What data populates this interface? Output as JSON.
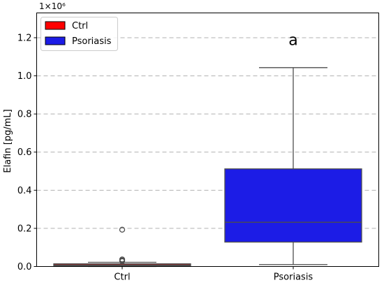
{
  "chart_data": {
    "type": "box",
    "categories": [
      "Ctrl",
      "Psoriasis"
    ],
    "ylabel": "Elafin [pg/mL]",
    "ylim": [
      0,
      1.33
    ],
    "y_multiplier": "1×10⁶",
    "y_ticks": [
      "0.0",
      "0.2",
      "0.4",
      "0.6",
      "0.8",
      "1.0",
      "1.2"
    ],
    "grid": "horizontal dashed",
    "legend_position": "top-left",
    "series": [
      {
        "name": "Ctrl",
        "color": "#ff0000",
        "whisker_low": 0.0,
        "q1": 0.004,
        "median": 0.008,
        "q3": 0.014,
        "whisker_high": 0.022,
        "outliers": [
          0.193,
          0.037,
          0.032,
          0.028
        ]
      },
      {
        "name": "Psoriasis",
        "color": "#1c1ce6",
        "whisker_low": 0.01,
        "q1": 0.128,
        "median": 0.232,
        "q3": 0.512,
        "whisker_high": 1.043,
        "outliers": []
      }
    ],
    "annotations": [
      {
        "category": "Psoriasis",
        "y": 1.19,
        "text": "a"
      }
    ]
  }
}
